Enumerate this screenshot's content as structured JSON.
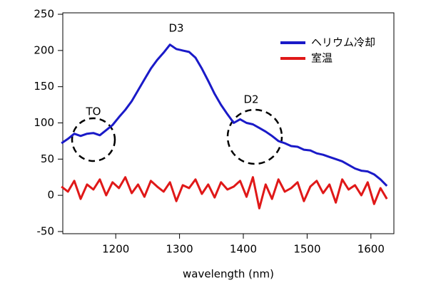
{
  "chart_data": {
    "type": "line",
    "x_label": "wavelength (nm)",
    "x": [
      1115,
      1125,
      1135,
      1145,
      1155,
      1165,
      1175,
      1185,
      1195,
      1205,
      1215,
      1225,
      1235,
      1245,
      1255,
      1265,
      1275,
      1285,
      1295,
      1305,
      1315,
      1325,
      1335,
      1345,
      1355,
      1365,
      1375,
      1385,
      1395,
      1405,
      1415,
      1425,
      1435,
      1445,
      1455,
      1465,
      1475,
      1485,
      1495,
      1505,
      1515,
      1525,
      1535,
      1545,
      1555,
      1565,
      1575,
      1585,
      1595,
      1605,
      1615,
      1625
    ],
    "series": [
      {
        "name": "ヘリウム冷却",
        "color": "#1a1ac8",
        "values": [
          72,
          78,
          85,
          82,
          85,
          86,
          83,
          90,
          97,
          108,
          118,
          130,
          145,
          160,
          175,
          187,
          197,
          208,
          202,
          200,
          198,
          190,
          175,
          158,
          140,
          125,
          112,
          100,
          105,
          100,
          98,
          93,
          88,
          82,
          75,
          72,
          68,
          67,
          63,
          62,
          58,
          56,
          53,
          50,
          47,
          42,
          37,
          34,
          33,
          29,
          22,
          13
        ]
      },
      {
        "name": "室温",
        "color": "#e01818",
        "values": [
          12,
          5,
          20,
          -5,
          15,
          8,
          22,
          0,
          18,
          10,
          25,
          3,
          15,
          -2,
          20,
          12,
          5,
          18,
          -8,
          14,
          10,
          22,
          2,
          15,
          -3,
          18,
          8,
          12,
          20,
          -2,
          25,
          -18,
          15,
          -5,
          22,
          5,
          10,
          18,
          -8,
          12,
          20,
          3,
          15,
          -10,
          22,
          8,
          14,
          0,
          18,
          -12,
          10,
          -5
        ]
      }
    ],
    "annotations": [
      "D3",
      "TO",
      "D2"
    ],
    "xlim": [
      1117,
      1636
    ],
    "xticks": [
      1200,
      1300,
      1400,
      1500,
      1600
    ],
    "ylim": [
      -53,
      252
    ],
    "yticks": [
      -50,
      0,
      50,
      100,
      150,
      200,
      250
    ],
    "legend": "top-right"
  }
}
